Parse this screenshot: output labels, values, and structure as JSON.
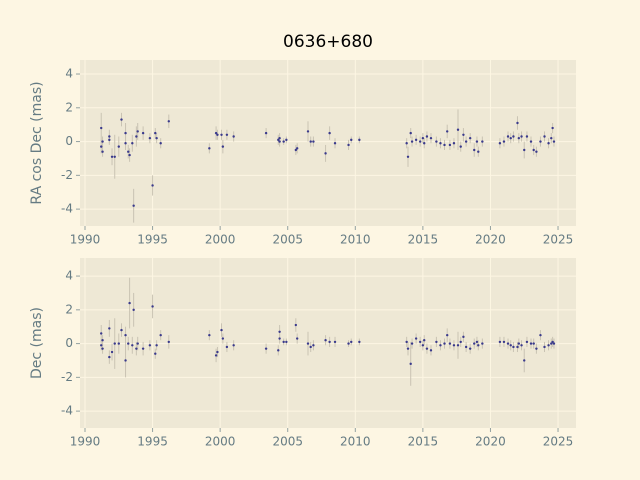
{
  "chart_data": [
    {
      "type": "scatter",
      "title": "0636+680",
      "ylabel": "RA cos Dec (mas)",
      "color": "#3a3a8c",
      "error_color": "#c9c3b3",
      "grid": true,
      "xlim": [
        1989.63,
        2026.33
      ],
      "ylim": [
        -5,
        4.83
      ],
      "xticks": [
        1990,
        1995,
        2000,
        2005,
        2010,
        2015,
        2020,
        2025
      ],
      "yticks": [
        -4,
        -2,
        0,
        2,
        4
      ],
      "x": [
        1991.2,
        1991.2,
        1991.3,
        1991.3,
        1991.8,
        1991.8,
        1992.0,
        1992.2,
        1992.5,
        1992.7,
        1993.0,
        1993.0,
        1993.2,
        1993.3,
        1993.5,
        1993.6,
        1993.8,
        1993.9,
        1994.3,
        1994.8,
        1995.0,
        1995.2,
        1995.3,
        1995.6,
        1996.2,
        1999.2,
        1999.7,
        1999.8,
        2000.1,
        2000.2,
        2000.5,
        2001.0,
        2003.4,
        2004.3,
        2004.4,
        2004.4,
        2004.7,
        2004.9,
        2005.6,
        2005.7,
        2006.5,
        2006.7,
        2006.9,
        2007.8,
        2008.1,
        2008.5,
        2009.5,
        2009.7,
        2010.3,
        2013.8,
        2013.9,
        2014.1,
        2014.2,
        2014.5,
        2014.8,
        2015.0,
        2015.1,
        2015.3,
        2015.6,
        2016.0,
        2016.3,
        2016.6,
        2016.8,
        2017.0,
        2017.3,
        2017.6,
        2017.8,
        2018.0,
        2018.2,
        2018.5,
        2018.8,
        2019.0,
        2019.1,
        2019.4,
        2020.7,
        2021.0,
        2021.3,
        2021.5,
        2021.7,
        2022.0,
        2022.1,
        2022.3,
        2022.5,
        2022.7,
        2023.0,
        2023.2,
        2023.4,
        2023.7,
        2024.0,
        2024.3,
        2024.5,
        2024.6,
        2024.7
      ],
      "values": [
        0.8,
        -0.3,
        -0.6,
        0.0,
        0.3,
        0.1,
        -0.9,
        -0.9,
        -0.3,
        1.3,
        0.5,
        -0.1,
        -0.6,
        -0.8,
        -0.1,
        -3.8,
        0.3,
        0.6,
        0.5,
        0.2,
        -2.6,
        0.5,
        0.2,
        -0.1,
        1.2,
        -0.4,
        0.5,
        0.4,
        0.4,
        -0.3,
        0.4,
        0.3,
        0.5,
        0.1,
        0.2,
        0.0,
        0.0,
        0.1,
        -0.5,
        -0.4,
        0.6,
        0.0,
        0.0,
        -0.7,
        0.5,
        -0.1,
        -0.2,
        0.1,
        0.1,
        -0.1,
        -0.9,
        0.5,
        0.0,
        0.1,
        0.0,
        0.2,
        -0.1,
        0.3,
        0.2,
        0.0,
        -0.1,
        -0.2,
        0.6,
        -0.2,
        -0.1,
        0.7,
        -0.3,
        0.4,
        0.0,
        0.2,
        -0.5,
        0.0,
        -0.6,
        0.0,
        -0.1,
        0.0,
        0.3,
        0.2,
        0.3,
        1.1,
        0.2,
        0.3,
        -0.5,
        0.3,
        0.0,
        -0.5,
        -0.6,
        0.0,
        0.3,
        -0.1,
        0.2,
        0.8,
        0.0
      ],
      "errors": [
        0.9,
        0.4,
        0.3,
        0.3,
        0.4,
        0.3,
        0.5,
        1.3,
        0.6,
        0.4,
        0.6,
        0.4,
        0.4,
        0.4,
        0.5,
        1.0,
        0.6,
        0.5,
        0.4,
        0.3,
        0.6,
        0.3,
        0.3,
        0.3,
        0.4,
        0.3,
        0.4,
        0.3,
        0.3,
        0.4,
        0.3,
        0.3,
        0.3,
        0.3,
        0.3,
        0.3,
        0.2,
        0.2,
        0.3,
        0.3,
        0.6,
        0.3,
        0.3,
        0.5,
        0.4,
        0.3,
        0.3,
        0.2,
        0.2,
        0.3,
        0.6,
        0.3,
        0.3,
        0.3,
        0.3,
        0.3,
        0.3,
        0.3,
        0.3,
        0.3,
        0.3,
        0.3,
        0.4,
        0.3,
        0.3,
        1.2,
        0.3,
        0.4,
        0.3,
        0.3,
        0.4,
        0.3,
        0.3,
        0.3,
        0.3,
        0.3,
        0.3,
        0.3,
        0.3,
        0.4,
        0.3,
        0.3,
        0.5,
        0.3,
        0.3,
        0.3,
        0.3,
        0.3,
        0.3,
        0.3,
        0.3,
        0.3,
        0.3
      ]
    },
    {
      "type": "scatter",
      "ylabel": "Dec (mas)",
      "color": "#3a3a8c",
      "error_color": "#c9c3b3",
      "grid": true,
      "xlim": [
        1989.63,
        2026.33
      ],
      "ylim": [
        -5,
        5.07
      ],
      "xticks": [
        1990,
        1995,
        2000,
        2005,
        2010,
        2015,
        2020,
        2025
      ],
      "yticks": [
        -4,
        -2,
        0,
        2,
        4
      ],
      "x": [
        1991.2,
        1991.2,
        1991.3,
        1991.3,
        1991.8,
        1991.8,
        1992.0,
        1992.2,
        1992.5,
        1992.7,
        1993.0,
        1993.0,
        1993.2,
        1993.3,
        1993.5,
        1993.6,
        1993.8,
        1993.9,
        1994.3,
        1994.8,
        1995.0,
        1995.2,
        1995.3,
        1995.6,
        1996.2,
        1999.2,
        1999.7,
        1999.8,
        2000.1,
        2000.2,
        2000.5,
        2001.0,
        2003.4,
        2004.3,
        2004.4,
        2004.4,
        2004.7,
        2004.9,
        2005.6,
        2005.7,
        2006.5,
        2006.7,
        2006.9,
        2007.8,
        2008.1,
        2008.5,
        2009.5,
        2009.7,
        2010.3,
        2013.8,
        2013.9,
        2014.1,
        2014.2,
        2014.5,
        2014.8,
        2015.0,
        2015.1,
        2015.3,
        2015.6,
        2016.0,
        2016.3,
        2016.6,
        2016.8,
        2017.0,
        2017.3,
        2017.6,
        2017.8,
        2018.0,
        2018.2,
        2018.5,
        2018.8,
        2019.0,
        2019.1,
        2019.4,
        2020.7,
        2021.0,
        2021.3,
        2021.5,
        2021.7,
        2022.0,
        2022.1,
        2022.3,
        2022.5,
        2022.7,
        2023.0,
        2023.2,
        2023.4,
        2023.7,
        2024.0,
        2024.3,
        2024.5,
        2024.6,
        2024.7
      ],
      "values": [
        0.6,
        -0.1,
        0.2,
        -0.3,
        -0.8,
        0.9,
        -0.5,
        0.0,
        0.0,
        0.8,
        -1.0,
        0.5,
        0.0,
        2.4,
        -0.1,
        2.0,
        -0.3,
        0.0,
        -0.3,
        -0.1,
        2.2,
        -0.6,
        -0.1,
        0.5,
        0.1,
        0.5,
        -0.7,
        -0.5,
        0.8,
        0.3,
        -0.2,
        -0.1,
        -0.3,
        -0.4,
        0.7,
        0.3,
        0.1,
        0.1,
        1.1,
        0.3,
        0.0,
        -0.2,
        -0.1,
        0.2,
        0.1,
        0.1,
        0.0,
        0.1,
        0.1,
        0.1,
        -0.3,
        -1.2,
        0.0,
        0.3,
        0.1,
        -0.1,
        0.2,
        -0.3,
        -0.4,
        0.1,
        -0.1,
        0.0,
        0.5,
        0.0,
        -0.1,
        -0.1,
        0.1,
        0.4,
        -0.2,
        -0.3,
        0.0,
        0.1,
        -0.1,
        0.0,
        0.1,
        0.1,
        0.0,
        -0.1,
        -0.2,
        -0.2,
        0.0,
        -0.1,
        -1.0,
        0.1,
        0.0,
        0.0,
        -0.3,
        0.5,
        -0.2,
        -0.1,
        0.0,
        0.1,
        0.0
      ],
      "errors": [
        0.5,
        0.3,
        0.3,
        0.3,
        0.4,
        0.5,
        0.5,
        1.5,
        0.6,
        0.4,
        1.0,
        0.5,
        0.4,
        1.5,
        0.5,
        1.0,
        0.4,
        0.4,
        0.4,
        0.3,
        0.7,
        0.3,
        0.3,
        0.3,
        0.4,
        0.3,
        0.4,
        0.3,
        0.4,
        0.3,
        0.3,
        0.3,
        0.3,
        0.3,
        0.4,
        0.3,
        0.2,
        0.2,
        0.4,
        0.3,
        0.7,
        0.3,
        0.3,
        0.3,
        0.3,
        0.3,
        0.2,
        0.2,
        0.2,
        0.3,
        0.4,
        1.3,
        0.3,
        0.3,
        0.3,
        0.3,
        0.3,
        0.3,
        0.3,
        0.3,
        0.3,
        0.3,
        0.4,
        0.3,
        0.3,
        0.8,
        0.3,
        0.3,
        0.3,
        0.3,
        0.3,
        0.3,
        0.3,
        0.3,
        0.3,
        0.3,
        0.3,
        0.3,
        0.3,
        0.3,
        0.3,
        0.3,
        0.7,
        0.3,
        0.3,
        0.3,
        0.3,
        0.3,
        0.3,
        0.3,
        0.3,
        0.3,
        0.3
      ]
    }
  ]
}
